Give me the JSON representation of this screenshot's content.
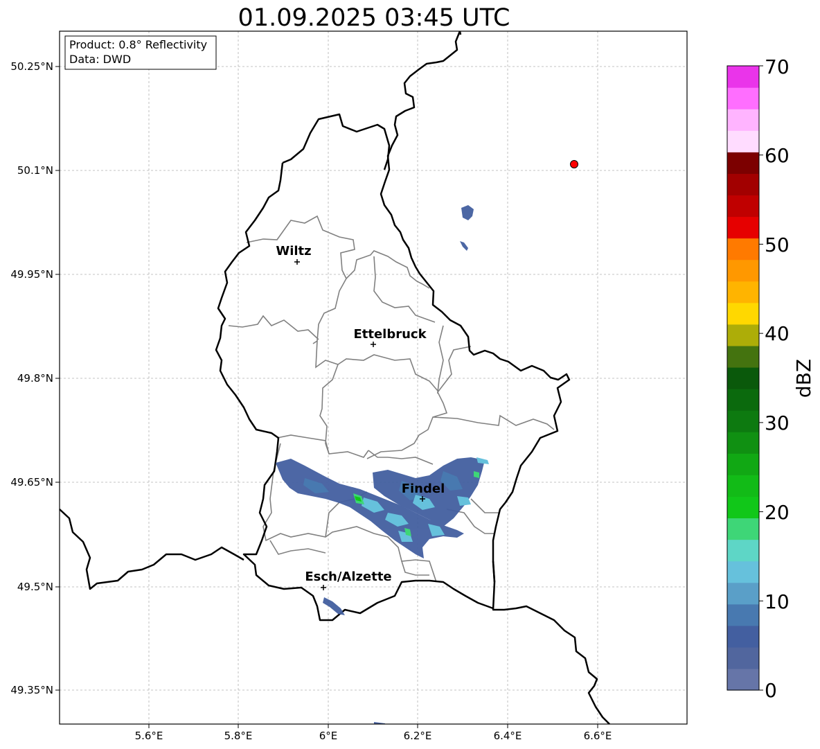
{
  "title": "01.09.2025 03:45 UTC",
  "info": {
    "product_line": "Product: 0.8° Reflectivity",
    "data_line": "Data: DWD"
  },
  "axes": {
    "lat_labels": [
      "50.25°N",
      "50.1°N",
      "49.95°N",
      "49.8°N",
      "49.65°N",
      "49.5°N",
      "49.35°N"
    ],
    "lon_labels": [
      "5.6°E",
      "5.8°E",
      "6°E",
      "6.2°E",
      "6.4°E",
      "6.6°E"
    ]
  },
  "cities": [
    {
      "name": "Wiltz"
    },
    {
      "name": "Ettelbruck"
    },
    {
      "name": "Findel"
    },
    {
      "name": "Esch/Alzette"
    }
  ],
  "colorbar": {
    "label": "dBZ",
    "tick_labels": [
      "0",
      "10",
      "20",
      "30",
      "40",
      "50",
      "60",
      "70"
    ],
    "colors": [
      "#6675a8",
      "#51669e",
      "#435fa0",
      "#4879b0",
      "#5a9fc8",
      "#66c1dc",
      "#5ed6c6",
      "#3ed677",
      "#11c719",
      "#12bb17",
      "#11a814",
      "#109012",
      "#0d7a10",
      "#0b6a0d",
      "#0a590b",
      "#44730f",
      "#adad08",
      "#ffd800",
      "#ffb400",
      "#ff9800",
      "#ff7a00",
      "#e60000",
      "#c00000",
      "#a20000",
      "#7c0000",
      "#ffdcff",
      "#ffb4ff",
      "#ff6eff",
      "#ea34ea"
    ]
  },
  "colors": {
    "border": "#000000",
    "admin": "#808080",
    "grid": "#b0b0b0",
    "radar_site": "#ff0000"
  }
}
